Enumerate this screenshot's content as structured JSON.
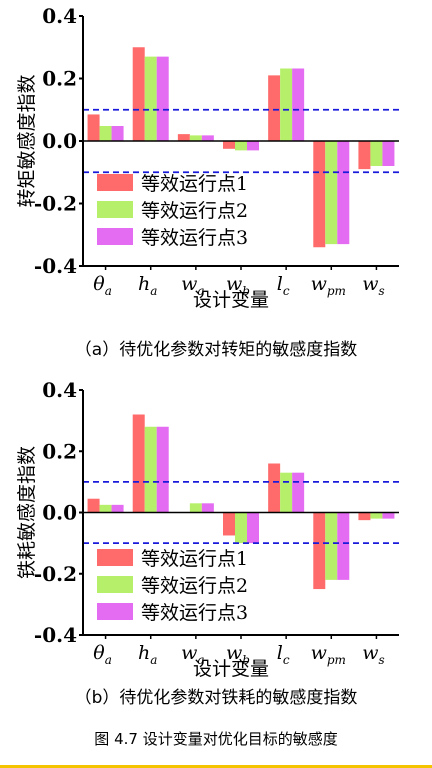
{
  "chart_data": [
    {
      "type": "bar",
      "title": "",
      "ylabel": "转矩敏感度指数",
      "xlabel": "设计变量",
      "ylim": [
        -0.4,
        0.4
      ],
      "yticks": [
        "0.4",
        "0.2",
        "0.0",
        "-0.2",
        "-0.4"
      ],
      "categories": [
        "θa",
        "ha",
        "wa",
        "wb",
        "lc",
        "wpm",
        "ws"
      ],
      "thresholds": [
        0.1,
        -0.1
      ],
      "legend_position": "bottom-left",
      "series": [
        {
          "name": "等效运行点1",
          "color": "#ff6b6b",
          "values": [
            0.085,
            0.3,
            0.022,
            -0.025,
            0.21,
            -0.34,
            -0.09
          ]
        },
        {
          "name": "等效运行点2",
          "color": "#b6f06a",
          "values": [
            0.048,
            0.27,
            0.018,
            -0.03,
            0.232,
            -0.33,
            -0.08
          ]
        },
        {
          "name": "等效运行点3",
          "color": "#e36cf2",
          "values": [
            0.048,
            0.27,
            0.018,
            -0.03,
            0.232,
            -0.33,
            -0.08
          ]
        }
      ],
      "caption": "（a）待优化参数对转矩的敏感度指数"
    },
    {
      "type": "bar",
      "title": "",
      "ylabel": "铁耗敏感度指数",
      "xlabel": "设计变量",
      "ylim": [
        -0.4,
        0.4
      ],
      "yticks": [
        "0.4",
        "0.2",
        "0.0",
        "-0.2",
        "-0.4"
      ],
      "categories": [
        "θa",
        "ha",
        "wa",
        "wb",
        "lc",
        "wpm",
        "ws"
      ],
      "thresholds": [
        0.1,
        -0.1
      ],
      "legend_position": "bottom-left",
      "series": [
        {
          "name": "等效运行点1",
          "color": "#ff6b6b",
          "values": [
            0.045,
            0.32,
            0.0,
            -0.075,
            0.16,
            -0.25,
            -0.025
          ]
        },
        {
          "name": "等效运行点2",
          "color": "#b6f06a",
          "values": [
            0.025,
            0.28,
            0.03,
            -0.1,
            0.13,
            -0.22,
            -0.02
          ]
        },
        {
          "name": "等效运行点3",
          "color": "#e36cf2",
          "values": [
            0.025,
            0.28,
            0.03,
            -0.1,
            0.13,
            -0.22,
            -0.02
          ]
        }
      ],
      "caption": "（b）待优化参数对铁耗的敏感度指数"
    }
  ],
  "figure_caption": "图 4.7 设计变量对优化目标的敏感度"
}
